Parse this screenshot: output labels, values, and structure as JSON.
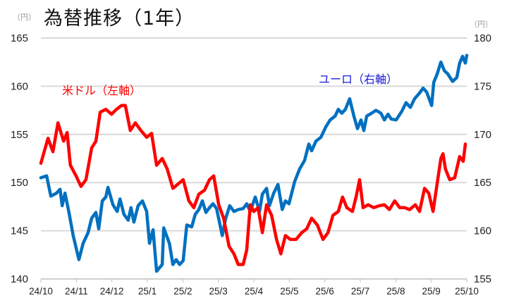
{
  "chart_data": {
    "type": "line",
    "title": "為替推移（1年）",
    "left_unit": "（円）",
    "right_unit": "（円）",
    "x_ticks": [
      "24/10",
      "24/11",
      "24/12",
      "25/1",
      "25/2",
      "25/3",
      "25/4",
      "25/5",
      "25/6",
      "25/7",
      "25/8",
      "25/9",
      "25/10"
    ],
    "x_unit_note": "x values are months elapsed since 24/10",
    "xlim": [
      0,
      12
    ],
    "left_axis": {
      "ylim": [
        140,
        165
      ],
      "ticks": [
        "140",
        "145",
        "150",
        "155",
        "160",
        "165"
      ]
    },
    "right_axis": {
      "ylim": [
        155,
        180
      ],
      "ticks": [
        "155",
        "160",
        "165",
        "170",
        "175",
        "180"
      ]
    },
    "grid": true,
    "series": [
      {
        "name": "米ドル（左軸）",
        "axis": "left",
        "color": "#ff0000",
        "x": [
          0,
          0.2,
          0.34,
          0.48,
          0.64,
          0.74,
          0.83,
          0.99,
          1.13,
          1.27,
          1.43,
          1.55,
          1.67,
          1.83,
          1.99,
          2.13,
          2.27,
          2.38,
          2.52,
          2.66,
          2.82,
          2.98,
          3.12,
          3.26,
          3.42,
          3.56,
          3.72,
          3.85,
          4.01,
          4.17,
          4.31,
          4.45,
          4.61,
          4.75,
          4.87,
          5.01,
          5.15,
          5.3,
          5.44,
          5.56,
          5.7,
          5.8,
          5.9,
          6.0,
          6.12,
          6.24,
          6.36,
          6.5,
          6.64,
          6.76,
          6.89,
          7.03,
          7.19,
          7.35,
          7.49,
          7.63,
          7.79,
          7.95,
          8.09,
          8.23,
          8.38,
          8.5,
          8.62,
          8.78,
          8.88,
          8.98,
          9.08,
          9.22,
          9.38,
          9.54,
          9.68,
          9.82,
          9.97,
          10.11,
          10.25,
          10.39,
          10.55,
          10.67,
          10.81,
          10.93,
          11.05,
          11.17,
          11.27,
          11.33,
          11.4,
          11.52,
          11.66,
          11.8,
          11.9,
          11.96
        ],
        "y": [
          152.0,
          154.6,
          153.2,
          156.2,
          154.3,
          155.2,
          151.8,
          150.7,
          149.6,
          150.3,
          153.6,
          154.3,
          157.3,
          157.6,
          157.1,
          157.6,
          158.0,
          158.0,
          155.4,
          156.2,
          155.4,
          154.7,
          155.1,
          151.8,
          152.5,
          151.4,
          149.4,
          149.8,
          150.3,
          148.1,
          147.4,
          148.8,
          149.2,
          150.3,
          150.7,
          147.7,
          146.3,
          143.4,
          142.6,
          141.5,
          141.5,
          143.0,
          147.7,
          147.0,
          147.4,
          144.8,
          147.7,
          146.6,
          144.1,
          142.6,
          144.5,
          144.1,
          144.1,
          144.8,
          145.2,
          146.3,
          145.6,
          144.1,
          144.8,
          146.6,
          147.0,
          148.5,
          147.4,
          147.0,
          148.5,
          150.3,
          147.4,
          147.7,
          147.4,
          147.6,
          147.7,
          147.2,
          148.1,
          147.4,
          147.4,
          147.2,
          147.7,
          147.0,
          149.4,
          148.9,
          147.0,
          150.0,
          152.5,
          153.0,
          151.4,
          150.3,
          150.5,
          152.7,
          152.2,
          154.0
        ]
      },
      {
        "name": "ユーロ（右軸）",
        "axis": "right",
        "color": "#0070c0",
        "x": [
          0,
          0.16,
          0.28,
          0.44,
          0.54,
          0.6,
          0.68,
          0.79,
          0.91,
          1.07,
          1.19,
          1.33,
          1.43,
          1.55,
          1.63,
          1.73,
          1.83,
          1.89,
          2.03,
          2.15,
          2.23,
          2.34,
          2.46,
          2.54,
          2.62,
          2.74,
          2.86,
          2.98,
          3.06,
          3.16,
          3.26,
          3.42,
          3.46,
          3.62,
          3.72,
          3.81,
          3.91,
          4.01,
          4.11,
          4.25,
          4.35,
          4.45,
          4.55,
          4.65,
          4.75,
          4.85,
          4.95,
          5.11,
          5.21,
          5.32,
          5.44,
          5.56,
          5.7,
          5.8,
          5.9,
          6.04,
          6.16,
          6.24,
          6.36,
          6.44,
          6.56,
          6.68,
          6.8,
          6.89,
          6.99,
          7.15,
          7.29,
          7.43,
          7.55,
          7.63,
          7.75,
          7.89,
          8.03,
          8.15,
          8.29,
          8.38,
          8.48,
          8.58,
          8.7,
          8.82,
          8.92,
          9.02,
          9.1,
          9.18,
          9.32,
          9.44,
          9.58,
          9.68,
          9.78,
          9.87,
          10.01,
          10.17,
          10.29,
          10.41,
          10.53,
          10.67,
          10.77,
          10.87,
          11.01,
          11.07,
          11.17,
          11.27,
          11.37,
          11.46,
          11.6,
          11.72,
          11.8,
          11.88,
          11.96,
          12.0
        ],
        "y": [
          165.5,
          165.7,
          163.6,
          163.9,
          164.3,
          162.6,
          163.9,
          161.9,
          159.5,
          157.0,
          158.7,
          159.8,
          161.3,
          161.9,
          160.2,
          163.1,
          163.5,
          164.5,
          162.7,
          162.0,
          163.3,
          161.7,
          161.1,
          162.4,
          160.9,
          162.6,
          163.1,
          162.0,
          158.7,
          160.1,
          155.8,
          156.5,
          160.3,
          158.7,
          156.5,
          157.0,
          156.5,
          156.9,
          160.6,
          160.4,
          161.7,
          162.2,
          163.1,
          161.9,
          162.4,
          162.8,
          162.3,
          159.5,
          161.3,
          162.6,
          162.0,
          162.2,
          162.3,
          162.8,
          162.0,
          163.5,
          162.0,
          163.8,
          164.4,
          162.6,
          163.9,
          164.8,
          162.2,
          163.1,
          162.8,
          165.1,
          166.4,
          167.3,
          169.0,
          168.3,
          169.3,
          169.7,
          170.8,
          171.5,
          171.9,
          172.6,
          172.2,
          172.6,
          173.7,
          171.9,
          170.6,
          171.5,
          170.4,
          171.9,
          172.2,
          172.5,
          172.2,
          171.5,
          172.1,
          171.6,
          171.5,
          172.4,
          173.3,
          172.8,
          173.7,
          174.3,
          174.8,
          174.4,
          173.0,
          175.4,
          176.3,
          177.5,
          176.6,
          176.3,
          175.5,
          175.9,
          177.4,
          178.1,
          177.4,
          178.2
        ]
      }
    ]
  },
  "legend_colors": {
    "usd_label": "#ff0000",
    "eur_label": "#1a1adb",
    "grid": "#d9d9d9"
  }
}
